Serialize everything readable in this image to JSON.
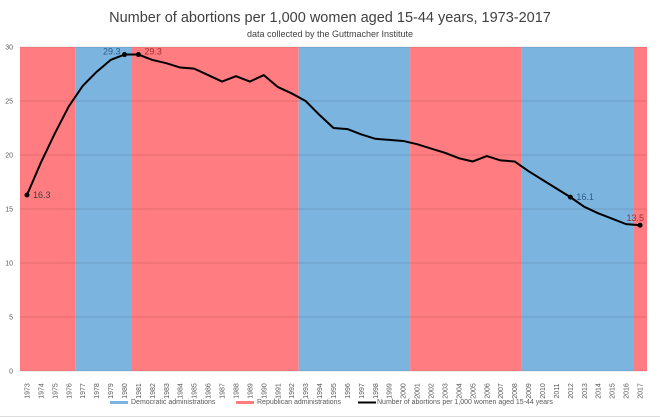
{
  "chart_data": {
    "type": "line",
    "title": "Number of abortions per 1,000 women aged 15-44 years, 1973-2017",
    "subtitle": "data collected by the Guttmacher Institute",
    "xlabel": "",
    "ylabel": "",
    "ylim": [
      0,
      30
    ],
    "yticks": [
      0,
      5,
      10,
      15,
      20,
      25,
      30
    ],
    "grid": true,
    "legend_placement": "bottom",
    "x": [
      1973,
      1974,
      1975,
      1976,
      1977,
      1978,
      1979,
      1980,
      1981,
      1982,
      1983,
      1984,
      1985,
      1986,
      1987,
      1988,
      1989,
      1990,
      1991,
      1992,
      1993,
      1994,
      1995,
      1996,
      1997,
      1998,
      1999,
      2000,
      2001,
      2002,
      2003,
      2004,
      2005,
      2006,
      2007,
      2008,
      2009,
      2010,
      2011,
      2012,
      2013,
      2014,
      2015,
      2016,
      2017
    ],
    "series": [
      {
        "name": "Number of abortions per 1,000 women aged 15-44 years",
        "color": "#000000",
        "values": [
          16.3,
          19.3,
          22.0,
          24.5,
          26.4,
          27.7,
          28.8,
          29.3,
          29.3,
          28.8,
          28.5,
          28.1,
          28.0,
          27.4,
          26.8,
          27.3,
          26.8,
          27.4,
          26.3,
          25.7,
          25.0,
          23.7,
          22.5,
          22.4,
          21.9,
          21.5,
          21.4,
          21.3,
          21.0,
          20.6,
          20.2,
          19.7,
          19.4,
          19.9,
          19.5,
          19.4,
          18.5,
          17.7,
          16.9,
          16.1,
          15.2,
          14.6,
          14.1,
          13.6,
          13.5
        ]
      }
    ],
    "data_labels": [
      {
        "year": 1973,
        "text": "16.3",
        "color": "#404040"
      },
      {
        "year": 1980,
        "text": "29.3",
        "color": "#2e5c8a"
      },
      {
        "year": 1981,
        "text": "29.3",
        "color": "#a03030"
      },
      {
        "year": 2012,
        "text": "16.1",
        "color": "#2e5c8a"
      },
      {
        "year": 2017,
        "text": "13.5",
        "color": "#a03030"
      }
    ],
    "bands": [
      {
        "party": "Republican",
        "start": 1973,
        "end": 1976
      },
      {
        "party": "Democratic",
        "start": 1977,
        "end": 1980
      },
      {
        "party": "Republican",
        "start": 1981,
        "end": 1992
      },
      {
        "party": "Democratic",
        "start": 1993,
        "end": 2000
      },
      {
        "party": "Republican",
        "start": 2001,
        "end": 2008
      },
      {
        "party": "Democratic",
        "start": 2009,
        "end": 2016
      },
      {
        "party": "Republican",
        "start": 2017,
        "end": 2017
      }
    ],
    "band_series": [
      {
        "party": "Democratic",
        "name": "Democratic administrations",
        "color": "#7cb4e0"
      },
      {
        "party": "Republican",
        "name": "Republican administrations",
        "color": "#ff7c80"
      }
    ]
  }
}
